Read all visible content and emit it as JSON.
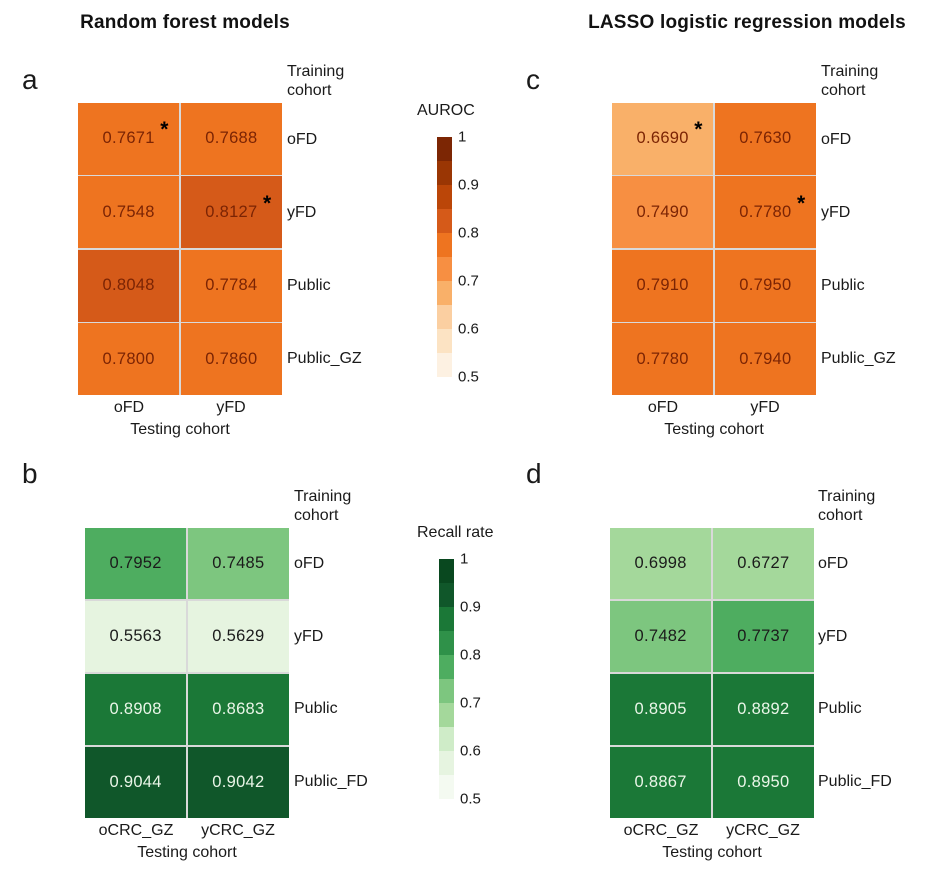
{
  "titles": {
    "left": "Random forest models",
    "right": "LASSO logistic regression models"
  },
  "palettes": {
    "orange": [
      "#fdf1e2",
      "#fce3c3",
      "#fbcfa1",
      "#f9b069",
      "#f78f42",
      "#ee7420",
      "#d55a19",
      "#bb4608",
      "#9a3604",
      "#7c2604"
    ],
    "green": [
      "#f4faf1",
      "#e6f4e0",
      "#cfecc8",
      "#a4d89b",
      "#7dc67f",
      "#4ead60",
      "#2f9149",
      "#1b7837",
      "#10572a",
      "#09481f"
    ]
  },
  "value_range": {
    "min": 0.5,
    "max": 1.0,
    "bin_size": 0.05
  },
  "text_colors": {
    "orange_value": "#7b2404",
    "green_value_dark": "#1b1b1b",
    "green_value_light": "#eaf6e8",
    "star": "#000000"
  },
  "colorbars": [
    {
      "title": "AUROC",
      "palette": "orange",
      "tick_labels": [
        "1",
        "0.9",
        "0.8",
        "0.7",
        "0.6",
        "0.5"
      ]
    },
    {
      "title": "Recall rate",
      "palette": "green",
      "tick_labels": [
        "1",
        "0.9",
        "0.8",
        "0.7",
        "0.6",
        "0.5"
      ]
    }
  ],
  "chart_data": [
    {
      "panel": "a",
      "type": "heatmap",
      "model": "Random forest",
      "metric": "AUROC",
      "palette": "orange",
      "ylabel": "Training cohort",
      "xlabel": "Testing cohort",
      "columns": [
        "oFD",
        "yFD"
      ],
      "rows": [
        "oFD",
        "yFD",
        "Public",
        "Public_GZ"
      ],
      "values": [
        [
          "0.7671",
          "0.7688"
        ],
        [
          "0.7548",
          "0.8127"
        ],
        [
          "0.8048",
          "0.7784"
        ],
        [
          "0.7800",
          "0.7860"
        ]
      ],
      "starred_cells": [
        [
          0,
          0
        ],
        [
          1,
          1
        ]
      ]
    },
    {
      "panel": "b",
      "type": "heatmap",
      "model": "Random forest",
      "metric": "Recall rate",
      "palette": "green",
      "ylabel": "Training cohort",
      "xlabel": "Testing cohort",
      "columns": [
        "oCRC_GZ",
        "yCRC_GZ"
      ],
      "rows": [
        "oFD",
        "yFD",
        "Public",
        "Public_FD"
      ],
      "values": [
        [
          "0.7952",
          "0.7485"
        ],
        [
          "0.5563",
          "0.5629"
        ],
        [
          "0.8908",
          "0.8683"
        ],
        [
          "0.9044",
          "0.9042"
        ]
      ],
      "starred_cells": []
    },
    {
      "panel": "c",
      "type": "heatmap",
      "model": "LASSO logistic regression",
      "metric": "AUROC",
      "palette": "orange",
      "ylabel": "Training cohort",
      "xlabel": "Testing cohort",
      "columns": [
        "oFD",
        "yFD"
      ],
      "rows": [
        "oFD",
        "yFD",
        "Public",
        "Public_GZ"
      ],
      "values": [
        [
          "0.6690",
          "0.7630"
        ],
        [
          "0.7490",
          "0.7780"
        ],
        [
          "0.7910",
          "0.7950"
        ],
        [
          "0.7780",
          "0.7940"
        ]
      ],
      "starred_cells": [
        [
          0,
          0
        ],
        [
          1,
          1
        ]
      ]
    },
    {
      "panel": "d",
      "type": "heatmap",
      "model": "LASSO logistic regression",
      "metric": "Recall rate",
      "palette": "green",
      "ylabel": "Training cohort",
      "xlabel": "Testing cohort",
      "columns": [
        "oCRC_GZ",
        "yCRC_GZ"
      ],
      "rows": [
        "oFD",
        "yFD",
        "Public",
        "Public_FD"
      ],
      "values": [
        [
          "0.6998",
          "0.6727"
        ],
        [
          "0.7482",
          "0.7737"
        ],
        [
          "0.8905",
          "0.8892"
        ],
        [
          "0.8867",
          "0.8950"
        ]
      ],
      "starred_cells": []
    }
  ]
}
